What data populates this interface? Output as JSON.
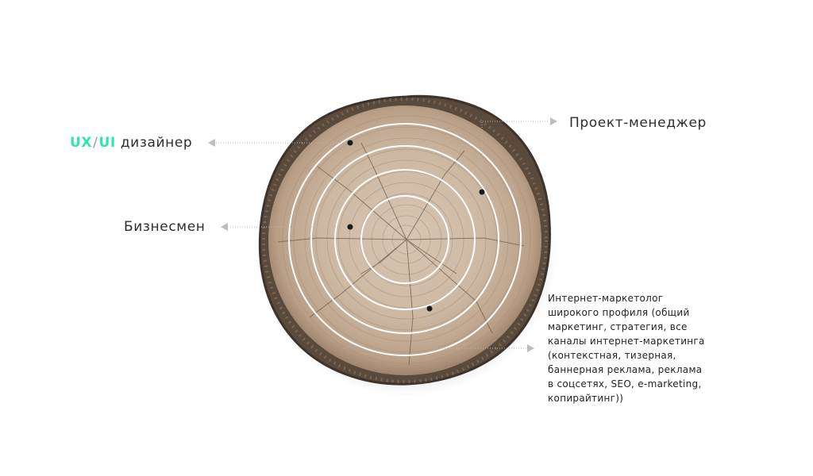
{
  "colors": {
    "accent": "#2ee6b0",
    "text": "#2e2e2e",
    "ring": "#ffffff",
    "leader": "#b8b8b8",
    "arrow": "#bdbdbd",
    "dot": "#1a1a1a"
  },
  "labels": {
    "ux_ui": {
      "ux": "UX",
      "slash": "/",
      "ui": "UI",
      "suffix": "дизайнер"
    },
    "businessman": "Бизнесмен",
    "project_manager": "Проект-менеджер",
    "internet_marketer": {
      "lines": [
        "Интернет-маркетолог",
        "широкого профиля (общий",
        "маркетинг, стратегия, все",
        "каналы интернет-маркетинга",
        "(контекстная, тизерная,",
        "баннерная реклама, реклама",
        "в соцсетях, SEO, e-marketing,",
        "копирайтинг))"
      ]
    }
  },
  "diagram": {
    "illustration": "tree-trunk-cross-section",
    "ring_count": 4,
    "marker_icon": "triangle-arrow-icon"
  }
}
